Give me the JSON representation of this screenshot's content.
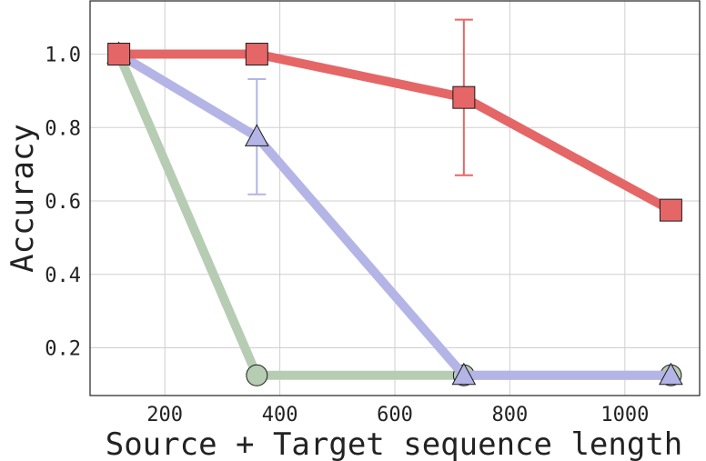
{
  "chart_data": {
    "type": "line",
    "title": "",
    "xlabel": "Source + Target sequence length",
    "ylabel": "Accuracy",
    "xlim": [
      70,
      1130
    ],
    "ylim": [
      0.07,
      1.145
    ],
    "x_ticks": [
      200,
      400,
      600,
      800,
      1000
    ],
    "y_ticks": [
      0.2,
      0.4,
      0.6,
      0.8,
      1.0
    ],
    "x_tick_labels": [
      "200",
      "400",
      "600",
      "800",
      "1000"
    ],
    "y_tick_labels": [
      "0.2",
      "0.4",
      "0.6",
      "0.8",
      "1.0"
    ],
    "grid": true,
    "legend": "none",
    "series": [
      {
        "color": "#b6cdb3",
        "marker": "circle",
        "x": [
          120,
          360,
          720,
          1080
        ],
        "y": [
          1.0,
          0.125,
          0.125,
          0.125
        ]
      },
      {
        "color": "#b4b4e6",
        "marker": "triangle",
        "x": [
          120,
          360,
          720,
          1080
        ],
        "y": [
          1.0,
          0.775,
          0.125,
          0.125
        ],
        "error": [
          0,
          0.157,
          0,
          0
        ]
      },
      {
        "color": "#e56666",
        "marker": "square",
        "x": [
          120,
          360,
          720,
          1080
        ],
        "y": [
          1.0,
          1.0,
          0.882,
          0.575
        ],
        "error": [
          0,
          0,
          0.212,
          0
        ]
      }
    ]
  }
}
